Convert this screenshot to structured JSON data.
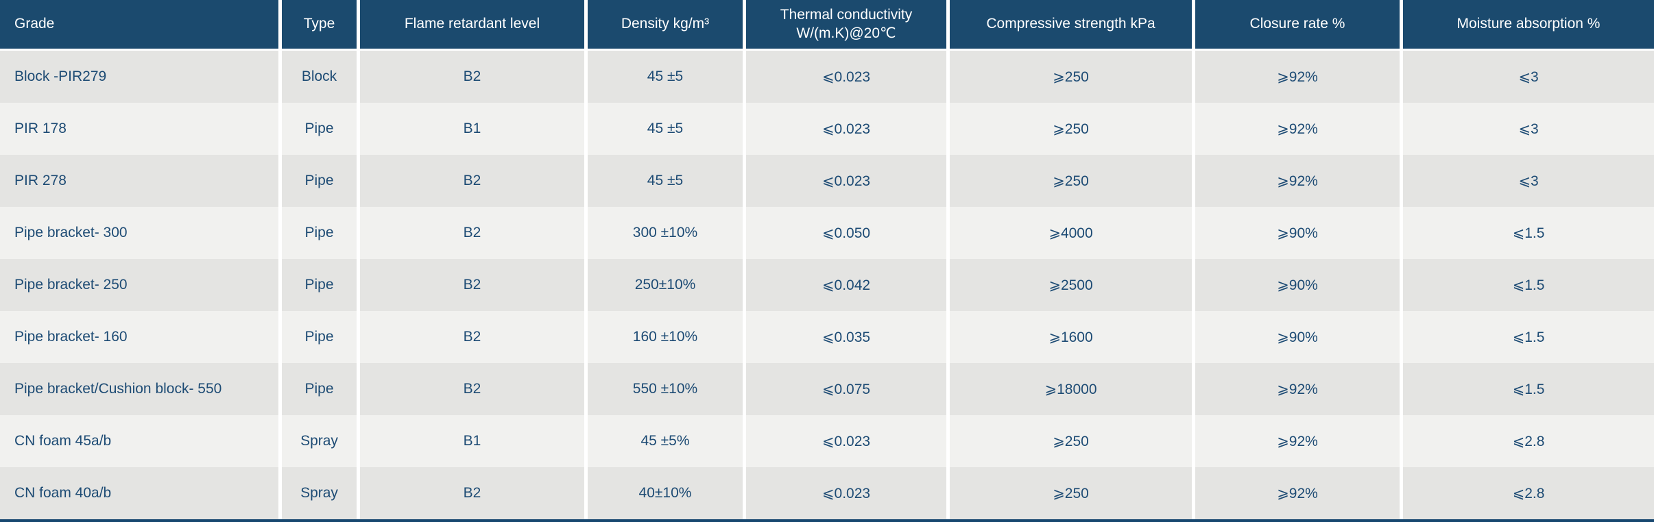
{
  "colors": {
    "header_background": "#1b4a6e",
    "header_text": "#ffffff",
    "cell_text": "#1d4b74",
    "row_stripe_dark": "#e4e4e2",
    "row_stripe_light": "#f1f1ef",
    "column_gap": "#ffffff",
    "bottom_border": "#17476f"
  },
  "table": {
    "columns": [
      {
        "key": "grade",
        "label": "Grade",
        "align": "left"
      },
      {
        "key": "type",
        "label": "Type",
        "align": "center"
      },
      {
        "key": "flame",
        "label": "Flame retardant level",
        "align": "center"
      },
      {
        "key": "density",
        "label": "Density kg/m³",
        "align": "center"
      },
      {
        "key": "thermal",
        "label": "Thermal conductivity\nW/(m.K)@20℃",
        "align": "center"
      },
      {
        "key": "compressive",
        "label": "Compressive strength kPa",
        "align": "center"
      },
      {
        "key": "closure",
        "label": "Closure rate %",
        "align": "center"
      },
      {
        "key": "moisture",
        "label": "Moisture absorption %",
        "align": "center"
      }
    ],
    "rows": [
      [
        "Block -PIR279",
        "Block",
        "B2",
        "45 ±5",
        "⩽0.023",
        "⩾250",
        "⩾92%",
        "⩽3"
      ],
      [
        "PIR 178",
        "Pipe",
        "B1",
        "45 ±5",
        "⩽0.023",
        "⩾250",
        "⩾92%",
        "⩽3"
      ],
      [
        "PIR 278",
        "Pipe",
        "B2",
        "45 ±5",
        "⩽0.023",
        "⩾250",
        "⩾92%",
        "⩽3"
      ],
      [
        "Pipe bracket- 300",
        "Pipe",
        "B2",
        "300 ±10%",
        "⩽0.050",
        "⩾4000",
        "⩾90%",
        "⩽1.5"
      ],
      [
        "Pipe bracket- 250",
        "Pipe",
        "B2",
        "250±10%",
        "⩽0.042",
        "⩾2500",
        "⩾90%",
        "⩽1.5"
      ],
      [
        "Pipe bracket- 160",
        "Pipe",
        "B2",
        "160 ±10%",
        "⩽0.035",
        "⩾1600",
        "⩾90%",
        "⩽1.5"
      ],
      [
        "Pipe bracket/Cushion block- 550",
        "Pipe",
        "B2",
        "550 ±10%",
        "⩽0.075",
        "⩾18000",
        "⩾92%",
        "⩽1.5"
      ],
      [
        "CN foam 45a/b",
        "Spray",
        "B1",
        "45 ±5%",
        "⩽0.023",
        "⩾250",
        "⩾92%",
        "⩽2.8"
      ],
      [
        "CN foam 40a/b",
        "Spray",
        "B2",
        "40±10%",
        "⩽0.023",
        "⩾250",
        "⩾92%",
        "⩽2.8"
      ]
    ]
  }
}
